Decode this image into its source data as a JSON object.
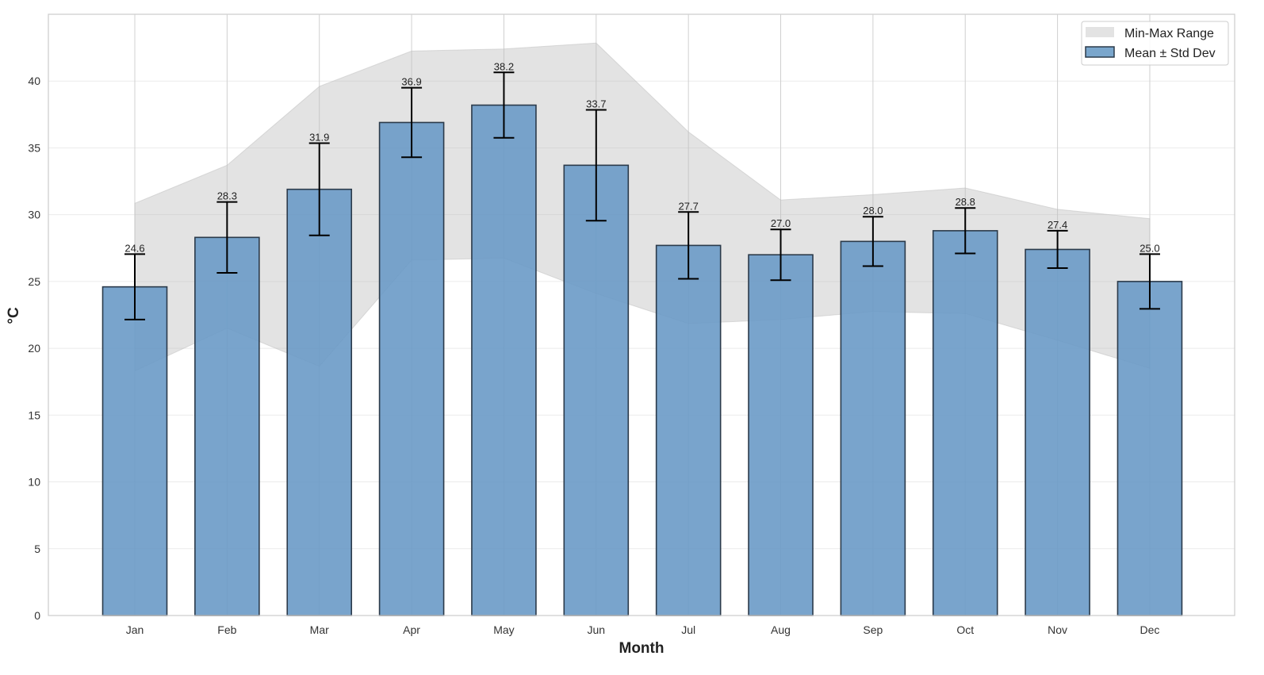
{
  "chart_data": {
    "type": "bar",
    "title": "",
    "xlabel": "Month",
    "ylabel": "°C",
    "categories": [
      "Jan",
      "Feb",
      "Mar",
      "Apr",
      "May",
      "Jun",
      "Jul",
      "Aug",
      "Sep",
      "Oct",
      "Nov",
      "Dec"
    ],
    "series": [
      {
        "name": "Mean ± Std Dev",
        "type": "bar",
        "values": [
          24.6,
          28.3,
          31.9,
          36.9,
          38.2,
          33.7,
          27.7,
          27.0,
          28.0,
          28.8,
          27.4,
          25.0
        ],
        "std": [
          2.45,
          2.65,
          3.45,
          2.6,
          2.45,
          4.15,
          2.5,
          1.9,
          1.85,
          1.7,
          1.4,
          2.05
        ],
        "data_labels": [
          "24.6",
          "28.3",
          "31.9",
          "36.9",
          "38.2",
          "33.7",
          "27.7",
          "27.0",
          "28.0",
          "28.8",
          "27.4",
          "25.0"
        ]
      },
      {
        "name": "Min-Max Range",
        "type": "area",
        "min": [
          18.3,
          21.5,
          18.65,
          26.6,
          26.75,
          24.1,
          21.85,
          22.15,
          22.75,
          22.6,
          20.6,
          18.5
        ],
        "max": [
          30.85,
          33.7,
          39.6,
          42.25,
          42.4,
          42.85,
          36.2,
          31.1,
          31.5,
          32.0,
          30.4,
          29.7
        ]
      }
    ],
    "ylim": [
      0,
      45
    ],
    "yticks": [
      "0",
      "5",
      "10",
      "15",
      "20",
      "25",
      "30",
      "35",
      "40"
    ],
    "grid": true,
    "legend": {
      "placement": "top-right",
      "entries": [
        "Min-Max Range",
        "Mean ± Std Dev"
      ]
    },
    "colors": {
      "bar": "#6a9ac7",
      "bar_edge": "#2b3a4a",
      "range": "#d3d3d3",
      "error": "#000000"
    }
  }
}
